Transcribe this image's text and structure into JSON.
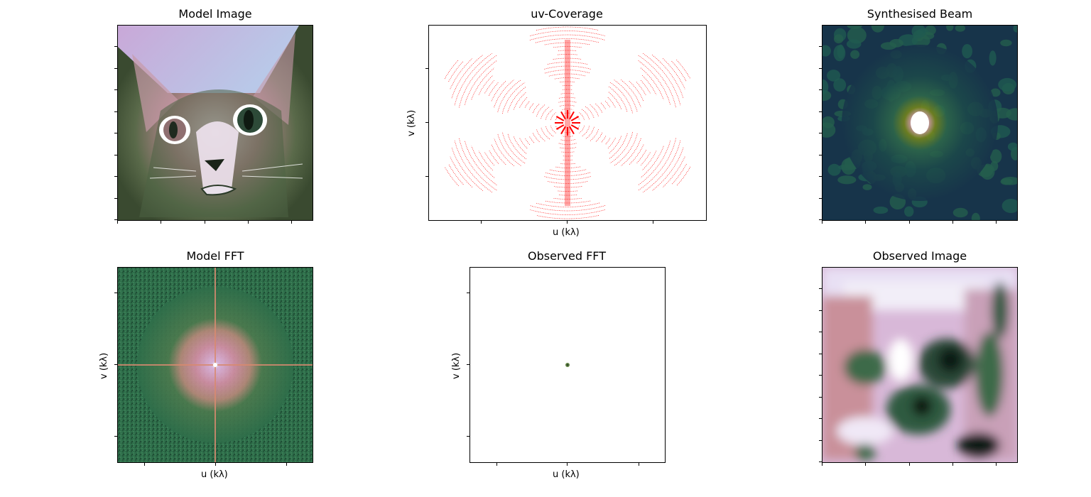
{
  "figure": {
    "panels": [
      {
        "title": "Model Image",
        "xlabel": "",
        "ylabel": ""
      },
      {
        "title": "uv-Coverage",
        "xlabel": "u (kλ)",
        "ylabel": "v (kλ)"
      },
      {
        "title": "Synthesised Beam",
        "xlabel": "",
        "ylabel": ""
      },
      {
        "title": "Model FFT",
        "xlabel": "u (kλ)",
        "ylabel": "v (kλ)"
      },
      {
        "title": "Observed FFT",
        "xlabel": "u (kλ)",
        "ylabel": "v (kλ)"
      },
      {
        "title": "Observed Image",
        "xlabel": "",
        "ylabel": ""
      }
    ]
  },
  "chart_data": [
    {
      "type": "heatmap",
      "title": "Model Image",
      "colormap": "cubehelix-like (purple/green/white)",
      "content": "photo of a tabby cat face",
      "tick_labels": "none"
    },
    {
      "type": "scatter",
      "title": "uv-Coverage",
      "xlabel": "u (kλ)",
      "ylabel": "v (kλ)",
      "marker_color": "#ff0000",
      "pattern": "6-fold rotationally symmetric concentric elliptical arcs",
      "tick_labels": "none"
    },
    {
      "type": "heatmap",
      "title": "Synthesised Beam",
      "colormap": "dark teal to yellow/white",
      "content": "bright central peak with sidelobes",
      "tick_labels": "none"
    },
    {
      "type": "heatmap",
      "title": "Model FFT",
      "xlabel": "u (kλ)",
      "ylabel": "v (kλ)",
      "colormap": "green/pink/white",
      "content": "central bright blob with cross-shaped artifact",
      "tick_labels": "none"
    },
    {
      "type": "heatmap",
      "title": "Observed FFT",
      "xlabel": "u (kλ)",
      "ylabel": "v (kλ)",
      "colormap": "white background with tiny central spot",
      "tick_labels": "none"
    },
    {
      "type": "heatmap",
      "title": "Observed Image",
      "colormap": "purple/green/white",
      "content": "blurred reconstruction of cat",
      "tick_labels": "none"
    }
  ],
  "colors": {
    "uv_points": "#ff0000",
    "beam_bg": "#17344a",
    "fft_bg": "#2e6e4a"
  }
}
